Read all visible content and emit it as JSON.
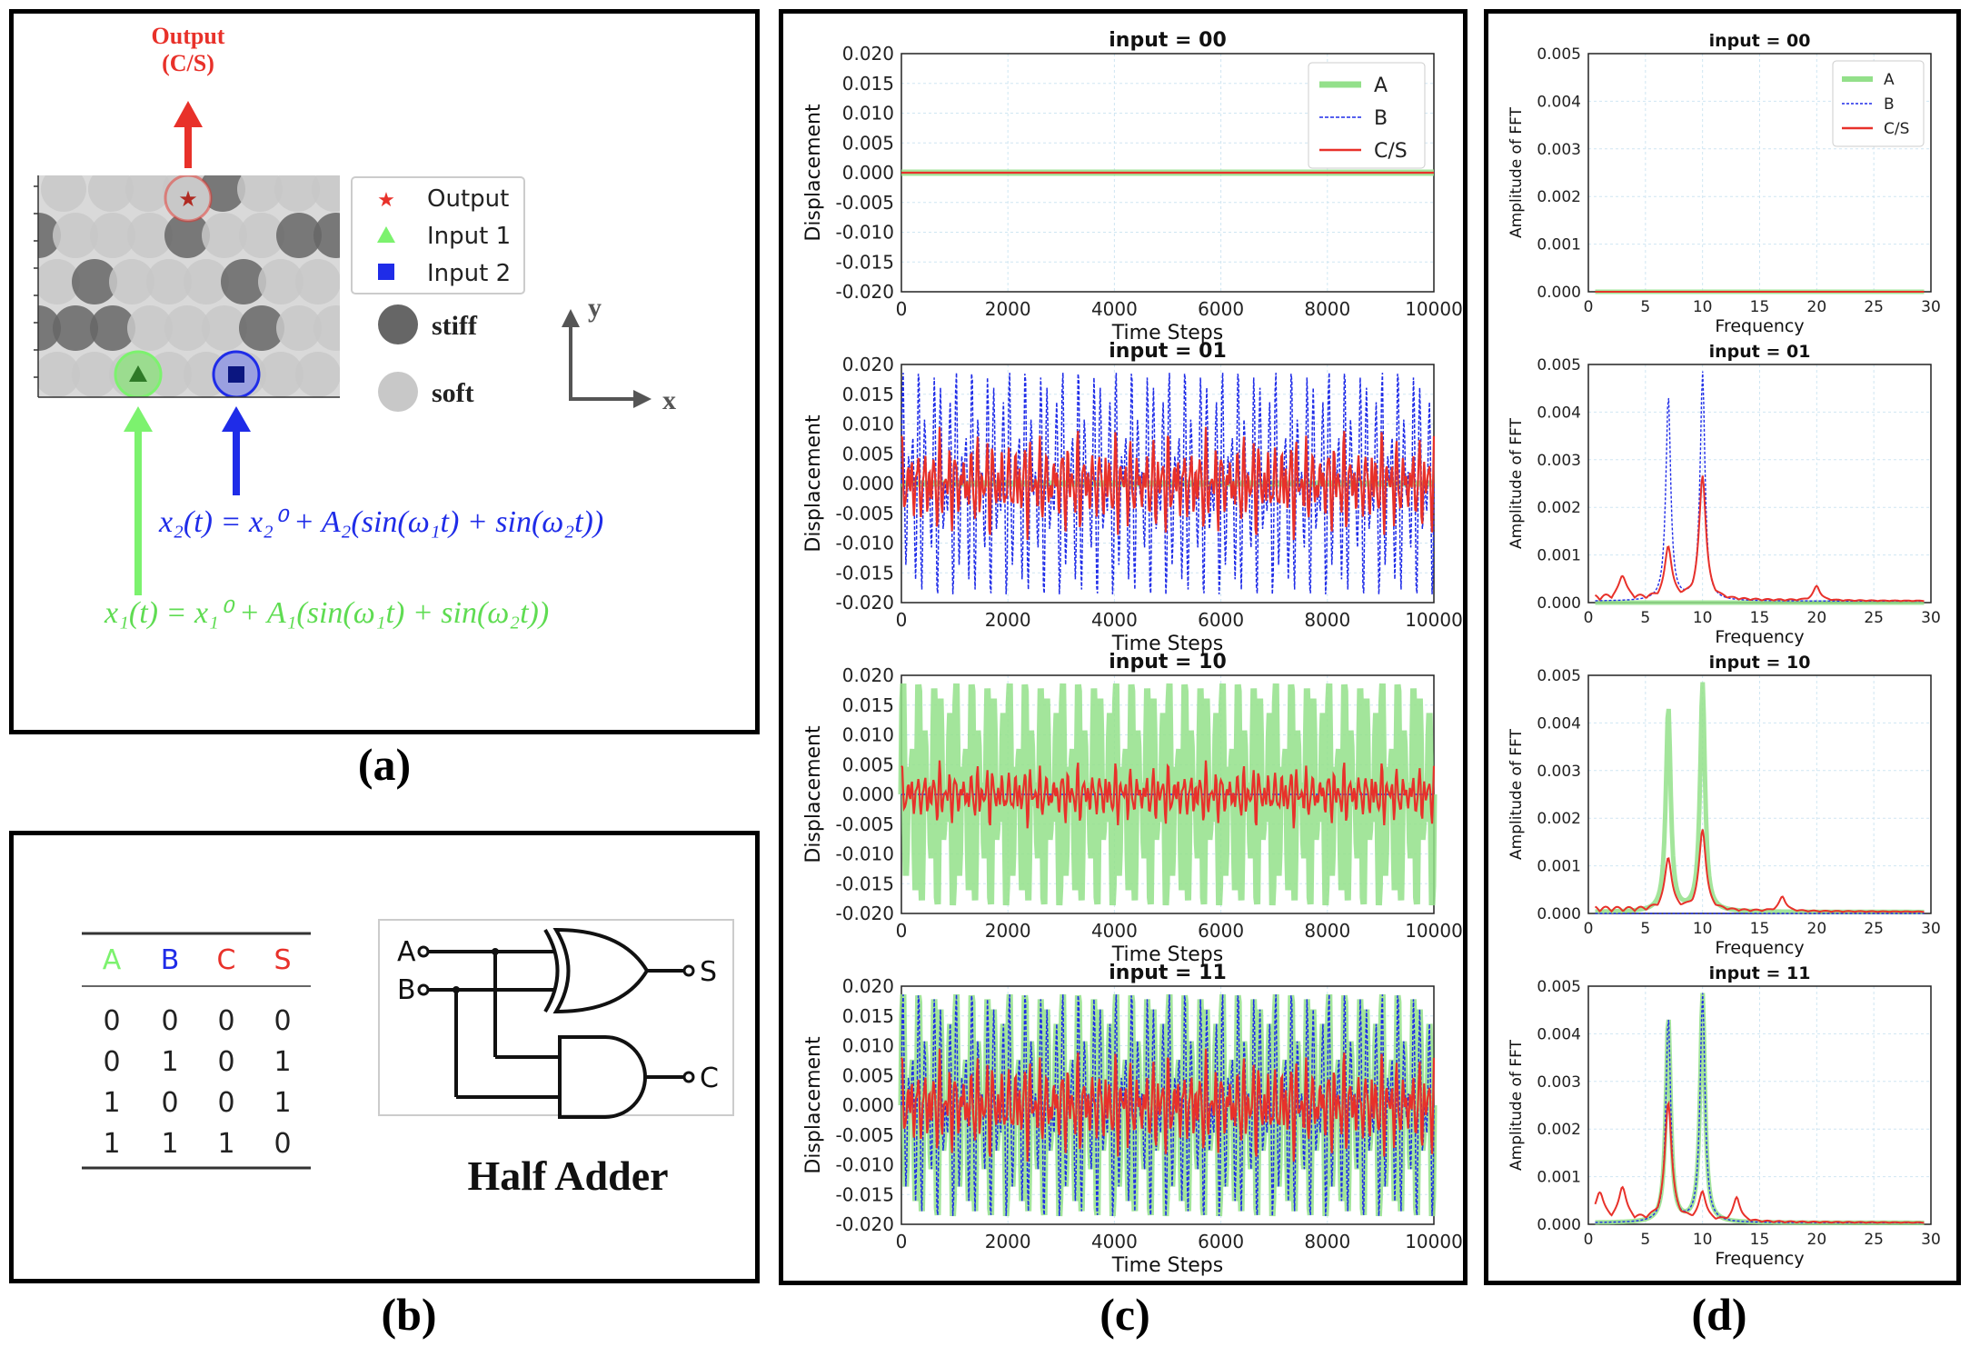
{
  "panel_a": {
    "output_label_line1": "Output",
    "output_label_line2": "(C/S)",
    "legend": {
      "output": "Output",
      "input1": "Input 1",
      "input2": "Input 2"
    },
    "stiff_label": "stiff",
    "soft_label": "soft",
    "axis_y": "y",
    "axis_x": "x",
    "eq2": "x₂(t) = x₂⁰ + A₂(sin(ω₁t) + sin(ω₂t))",
    "eq1": "x₁(t) = x₁⁰ + A₁(sin(ω₁t) + sin(ω₂t))",
    "colors": {
      "red": "#e8312a",
      "green": "#7cf26e",
      "blue": "#1f2ce8",
      "stiff": "#666666",
      "soft": "#c8c8c8"
    }
  },
  "panel_b": {
    "table_headers": [
      "A",
      "B",
      "C",
      "S"
    ],
    "table_rows": [
      [
        "0",
        "0",
        "0",
        "0"
      ],
      [
        "0",
        "1",
        "0",
        "1"
      ],
      [
        "1",
        "0",
        "0",
        "1"
      ],
      [
        "1",
        "1",
        "1",
        "0"
      ]
    ],
    "circuit_inputs": [
      "A",
      "B"
    ],
    "circuit_outputs": [
      "S",
      "C"
    ],
    "caption": "Half Adder"
  },
  "labels": {
    "a": "(a)",
    "b": "(b)",
    "c": "(c)",
    "d": "(d)"
  },
  "chart_data": [
    {
      "type": "line",
      "panel": "c",
      "title": "input = 00",
      "xlabel": "Time Steps",
      "ylabel": "Displacement",
      "xlim": [
        0,
        10000
      ],
      "ylim": [
        -0.02,
        0.02
      ],
      "xticks": [
        "0",
        "2000",
        "4000",
        "6000",
        "8000",
        "10000"
      ],
      "yticks": [
        "0.020",
        "0.015",
        "0.010",
        "0.005",
        "0.000",
        "-0.005",
        "-0.010",
        "-0.015",
        "-0.020"
      ],
      "legend": [
        "A",
        "B",
        "C/S"
      ],
      "series": [
        {
          "name": "A",
          "amplitude": 0,
          "color": "#93e08a"
        },
        {
          "name": "B",
          "amplitude": 0,
          "color": "#1f2ce8"
        },
        {
          "name": "C/S",
          "amplitude": 0,
          "color": "#e8312a"
        }
      ]
    },
    {
      "type": "line",
      "panel": "c",
      "title": "input = 01",
      "xlabel": "Time Steps",
      "ylabel": "Displacement",
      "xlim": [
        0,
        10000
      ],
      "ylim": [
        -0.02,
        0.02
      ],
      "xticks": [
        "0",
        "2000",
        "4000",
        "6000",
        "8000",
        "10000"
      ],
      "yticks": [
        "0.020",
        "0.015",
        "0.010",
        "0.005",
        "0.000",
        "-0.005",
        "-0.010",
        "-0.015",
        "-0.020"
      ],
      "series": [
        {
          "name": "A",
          "amplitude": 0,
          "color": "#93e08a"
        },
        {
          "name": "B",
          "amplitude": 0.02,
          "color": "#1f2ce8"
        },
        {
          "name": "C/S",
          "amplitude": 0.01,
          "color": "#e8312a"
        }
      ]
    },
    {
      "type": "line",
      "panel": "c",
      "title": "input = 10",
      "xlabel": "Time Steps",
      "ylabel": "Displacement",
      "xlim": [
        0,
        10000
      ],
      "ylim": [
        -0.02,
        0.02
      ],
      "xticks": [
        "0",
        "2000",
        "4000",
        "6000",
        "8000",
        "10000"
      ],
      "yticks": [
        "0.020",
        "0.015",
        "0.010",
        "0.005",
        "0.000",
        "-0.005",
        "-0.010",
        "-0.015",
        "-0.020"
      ],
      "series": [
        {
          "name": "A",
          "amplitude": 0.02,
          "color": "#93e08a"
        },
        {
          "name": "B",
          "amplitude": 0,
          "color": "#1f2ce8"
        },
        {
          "name": "C/S",
          "amplitude": 0.006,
          "color": "#e8312a"
        }
      ]
    },
    {
      "type": "line",
      "panel": "c",
      "title": "input = 11",
      "xlabel": "Time Steps",
      "ylabel": "Displacement",
      "xlim": [
        0,
        10000
      ],
      "ylim": [
        -0.02,
        0.02
      ],
      "xticks": [
        "0",
        "2000",
        "4000",
        "6000",
        "8000",
        "10000"
      ],
      "yticks": [
        "0.020",
        "0.015",
        "0.010",
        "0.005",
        "0.000",
        "-0.005",
        "-0.010",
        "-0.015",
        "-0.020"
      ],
      "series": [
        {
          "name": "A",
          "amplitude": 0.02,
          "color": "#93e08a"
        },
        {
          "name": "B",
          "amplitude": 0.02,
          "color": "#1f2ce8"
        },
        {
          "name": "C/S",
          "amplitude": 0.01,
          "color": "#e8312a"
        }
      ]
    },
    {
      "type": "line",
      "panel": "d",
      "title": "input = 00",
      "xlabel": "Frequency",
      "ylabel": "Amplitude of FFT",
      "xlim": [
        0,
        30
      ],
      "ylim": [
        0,
        0.005
      ],
      "xticks": [
        "0",
        "5",
        "10",
        "15",
        "20",
        "25",
        "30"
      ],
      "yticks": [
        "0.005",
        "0.004",
        "0.003",
        "0.002",
        "0.001",
        "0.000"
      ],
      "legend": [
        "A",
        "B",
        "C/S"
      ],
      "series": [
        {
          "name": "A",
          "peaks": [],
          "color": "#93e08a"
        },
        {
          "name": "B",
          "peaks": [],
          "color": "#1f2ce8"
        },
        {
          "name": "C/S",
          "peaks": [],
          "color": "#e8312a"
        }
      ]
    },
    {
      "type": "line",
      "panel": "d",
      "title": "input = 01",
      "xlabel": "Frequency",
      "ylabel": "Amplitude of FFT",
      "xlim": [
        0,
        30
      ],
      "ylim": [
        0,
        0.005
      ],
      "xticks": [
        "0",
        "5",
        "10",
        "15",
        "20",
        "25",
        "30"
      ],
      "yticks": [
        "0.005",
        "0.004",
        "0.003",
        "0.002",
        "0.001",
        "0.000"
      ],
      "series": [
        {
          "name": "A",
          "peaks": [],
          "color": "#93e08a"
        },
        {
          "name": "B",
          "peaks": [
            [
              7,
              0.0043
            ],
            [
              10,
              0.0048
            ]
          ],
          "color": "#1f2ce8"
        },
        {
          "name": "C/S",
          "peaks": [
            [
              3,
              0.0005
            ],
            [
              7,
              0.0011
            ],
            [
              10,
              0.0026
            ],
            [
              20,
              0.0003
            ]
          ],
          "color": "#e8312a"
        }
      ]
    },
    {
      "type": "line",
      "panel": "d",
      "title": "input = 10",
      "xlabel": "Frequency",
      "ylabel": "Amplitude of FFT",
      "xlim": [
        0,
        30
      ],
      "ylim": [
        0,
        0.005
      ],
      "xticks": [
        "0",
        "5",
        "10",
        "15",
        "20",
        "25",
        "30"
      ],
      "yticks": [
        "0.005",
        "0.004",
        "0.003",
        "0.002",
        "0.001",
        "0.000"
      ],
      "series": [
        {
          "name": "A",
          "peaks": [
            [
              7,
              0.0043
            ],
            [
              10,
              0.0048
            ]
          ],
          "color": "#93e08a"
        },
        {
          "name": "B",
          "peaks": [],
          "color": "#1f2ce8"
        },
        {
          "name": "C/S",
          "peaks": [
            [
              7,
              0.0011
            ],
            [
              10,
              0.0017
            ],
            [
              17,
              0.0003
            ]
          ],
          "color": "#e8312a"
        }
      ]
    },
    {
      "type": "line",
      "panel": "d",
      "title": "input = 11",
      "xlabel": "Frequency",
      "ylabel": "Amplitude of FFT",
      "xlim": [
        0,
        30
      ],
      "ylim": [
        0,
        0.005
      ],
      "xticks": [
        "0",
        "5",
        "10",
        "15",
        "20",
        "25",
        "30"
      ],
      "yticks": [
        "0.005",
        "0.004",
        "0.003",
        "0.002",
        "0.001",
        "0.000"
      ],
      "series": [
        {
          "name": "A",
          "peaks": [
            [
              7,
              0.0043
            ],
            [
              10,
              0.0048
            ]
          ],
          "color": "#93e08a"
        },
        {
          "name": "B",
          "peaks": [
            [
              7,
              0.0043
            ],
            [
              10,
              0.0048
            ]
          ],
          "color": "#1f2ce8"
        },
        {
          "name": "C/S",
          "peaks": [
            [
              1,
              0.0006
            ],
            [
              3,
              0.0007
            ],
            [
              7,
              0.0025
            ],
            [
              10,
              0.0006
            ],
            [
              13,
              0.0005
            ]
          ],
          "color": "#e8312a"
        }
      ]
    }
  ]
}
